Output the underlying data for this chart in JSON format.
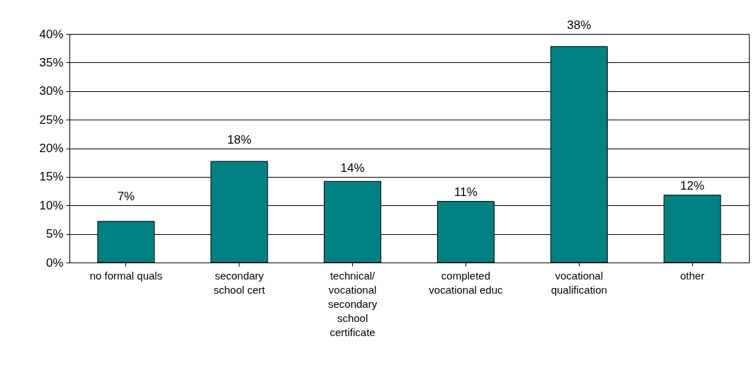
{
  "chart_data": {
    "type": "bar",
    "categories": [
      "no formal quals",
      "secondary school  cert",
      "technical/ vocational secondary school certificate",
      "completed vocational educ",
      "vocational qualification",
      "other"
    ],
    "values": [
      7.2,
      17.7,
      14.2,
      10.7,
      37.8,
      11.8
    ],
    "value_labels": [
      "7%",
      "18%",
      "14%",
      "11%",
      "38%",
      "12%"
    ],
    "color": "#008080",
    "ylim": [
      0,
      40
    ],
    "yticks": [
      {
        "value": 0,
        "label": "0%"
      },
      {
        "value": 5,
        "label": "5%"
      },
      {
        "value": 10,
        "label": "10%"
      },
      {
        "value": 15,
        "label": "15%"
      },
      {
        "value": 20,
        "label": "20%"
      },
      {
        "value": 25,
        "label": "25%"
      },
      {
        "value": 30,
        "label": "30%"
      },
      {
        "value": 35,
        "label": "35%"
      },
      {
        "value": 40,
        "label": "40%"
      }
    ],
    "grid": true,
    "legend": false
  }
}
